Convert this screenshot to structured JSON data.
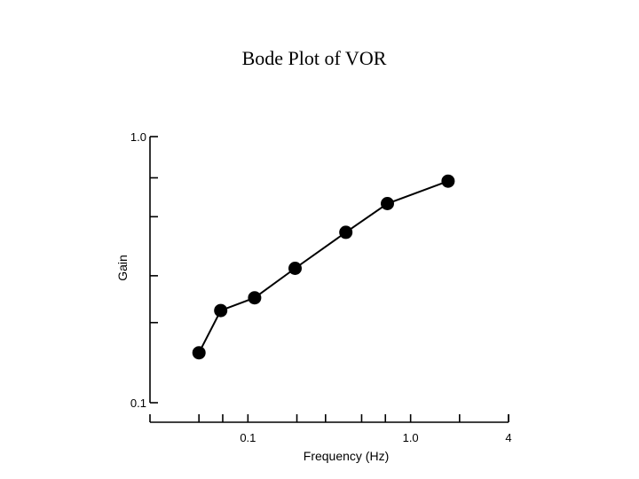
{
  "title": "Bode Plot of VOR",
  "chart_data": {
    "type": "line",
    "title": "Bode Plot of VOR",
    "xlabel": "Frequency (Hz)",
    "ylabel": "Gain",
    "xscale": "log",
    "yscale": "log",
    "xlim": [
      0.025,
      4
    ],
    "ylim": [
      0.1,
      1.0
    ],
    "x_tick_labels": [
      {
        "value": 0.1,
        "label": "0.1"
      },
      {
        "value": 1.0,
        "label": "1.0"
      },
      {
        "value": 4,
        "label": "4"
      }
    ],
    "x_minor_ticks": [
      0.05,
      0.07,
      0.2,
      0.3,
      0.5,
      0.7,
      2
    ],
    "y_tick_labels": [
      {
        "value": 0.1,
        "label": "0.1"
      },
      {
        "value": 1.0,
        "label": "1.0"
      }
    ],
    "y_minor_ticks": [
      0.2,
      0.3,
      0.5,
      0.7
    ],
    "grid": false,
    "legend": "none",
    "marker_color": "#000000",
    "line_color": "#000000",
    "series": [
      {
        "x": [
          0.05,
          0.068,
          0.11,
          0.195,
          0.4,
          0.72,
          1.7
        ],
        "y": [
          0.154,
          0.222,
          0.248,
          0.32,
          0.437,
          0.56,
          0.68
        ]
      }
    ]
  }
}
